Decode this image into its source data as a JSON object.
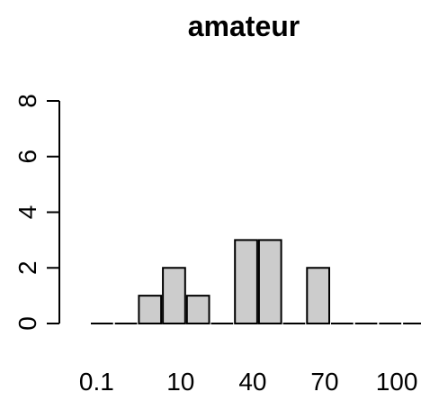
{
  "chart_data": {
    "type": "bar",
    "title": "amateur",
    "xlabel": "",
    "ylabel": "",
    "categories": [
      "0.1",
      "",
      "",
      "10",
      "",
      "",
      "",
      "40",
      "",
      "",
      "70",
      "",
      "",
      ""
    ],
    "values": [
      0,
      0,
      1,
      2,
      1,
      0,
      3,
      3,
      0,
      2,
      0,
      0,
      0,
      0
    ],
    "x_tick_labels": [
      "0.1",
      "10",
      "40",
      "70",
      "100"
    ],
    "y_ticks": [
      0,
      2,
      4,
      6,
      8
    ],
    "ylim": [
      0,
      8
    ],
    "bar_color": "#cccccc",
    "border_color": "#000000"
  }
}
